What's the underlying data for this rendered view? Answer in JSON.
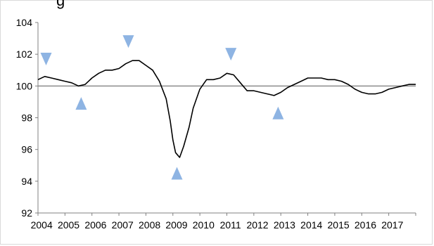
{
  "chart_data": {
    "type": "line",
    "title": "",
    "xlabel": "",
    "ylabel": "",
    "x_ticks": [
      "2004",
      "2005",
      "2006",
      "2007",
      "2008",
      "2009",
      "2010",
      "2011",
      "2012",
      "2013",
      "2014",
      "2015",
      "2016",
      "2017"
    ],
    "y_ticks": [
      "92",
      "94",
      "96",
      "98",
      "100",
      "102",
      "104"
    ],
    "ylim": [
      92,
      104
    ],
    "xlim": [
      2004.0,
      2018.0
    ],
    "reference_line": 100,
    "series": [
      {
        "color": "#000000",
        "points": [
          [
            2004.0,
            100.4
          ],
          [
            2004.25,
            100.6
          ],
          [
            2004.5,
            100.5
          ],
          [
            2004.75,
            100.4
          ],
          [
            2005.0,
            100.3
          ],
          [
            2005.25,
            100.2
          ],
          [
            2005.5,
            100.0
          ],
          [
            2005.75,
            100.1
          ],
          [
            2006.0,
            100.5
          ],
          [
            2006.25,
            100.8
          ],
          [
            2006.5,
            101.0
          ],
          [
            2006.75,
            101.0
          ],
          [
            2007.0,
            101.1
          ],
          [
            2007.25,
            101.4
          ],
          [
            2007.5,
            101.6
          ],
          [
            2007.75,
            101.6
          ],
          [
            2008.0,
            101.3
          ],
          [
            2008.25,
            101.0
          ],
          [
            2008.5,
            100.3
          ],
          [
            2008.75,
            99.2
          ],
          [
            2008.9,
            97.8
          ],
          [
            2009.0,
            96.6
          ],
          [
            2009.1,
            95.8
          ],
          [
            2009.25,
            95.5
          ],
          [
            2009.4,
            96.2
          ],
          [
            2009.6,
            97.4
          ],
          [
            2009.75,
            98.6
          ],
          [
            2010.0,
            99.8
          ],
          [
            2010.25,
            100.4
          ],
          [
            2010.5,
            100.4
          ],
          [
            2010.75,
            100.5
          ],
          [
            2011.0,
            100.8
          ],
          [
            2011.25,
            100.7
          ],
          [
            2011.5,
            100.2
          ],
          [
            2011.75,
            99.7
          ],
          [
            2012.0,
            99.7
          ],
          [
            2012.25,
            99.6
          ],
          [
            2012.5,
            99.5
          ],
          [
            2012.75,
            99.4
          ],
          [
            2013.0,
            99.6
          ],
          [
            2013.25,
            99.9
          ],
          [
            2013.5,
            100.1
          ],
          [
            2013.75,
            100.3
          ],
          [
            2014.0,
            100.5
          ],
          [
            2014.25,
            100.5
          ],
          [
            2014.5,
            100.5
          ],
          [
            2014.75,
            100.4
          ],
          [
            2015.0,
            100.4
          ],
          [
            2015.25,
            100.3
          ],
          [
            2015.5,
            100.1
          ],
          [
            2015.75,
            99.8
          ],
          [
            2016.0,
            99.6
          ],
          [
            2016.25,
            99.5
          ],
          [
            2016.5,
            99.5
          ],
          [
            2016.75,
            99.6
          ],
          [
            2017.0,
            99.8
          ],
          [
            2017.25,
            99.9
          ],
          [
            2017.5,
            100.0
          ],
          [
            2017.75,
            100.1
          ],
          [
            2018.0,
            100.1
          ]
        ]
      }
    ],
    "markers": [
      {
        "kind": "peak",
        "shape": "down-triangle",
        "x": 2004.3,
        "y": 101.7
      },
      {
        "kind": "trough",
        "shape": "up-triangle",
        "x": 2005.6,
        "y": 98.9
      },
      {
        "kind": "peak",
        "shape": "down-triangle",
        "x": 2007.35,
        "y": 102.8
      },
      {
        "kind": "trough",
        "shape": "up-triangle",
        "x": 2009.15,
        "y": 94.5
      },
      {
        "kind": "peak",
        "shape": "down-triangle",
        "x": 2011.15,
        "y": 102.0
      },
      {
        "kind": "trough",
        "shape": "up-triangle",
        "x": 2012.9,
        "y": 98.3
      }
    ],
    "colors": {
      "line": "#000000",
      "reference": "#8c8c8c",
      "marker": "#8eb4e3",
      "axis": "#808080"
    },
    "grid": false,
    "legend": "none"
  }
}
